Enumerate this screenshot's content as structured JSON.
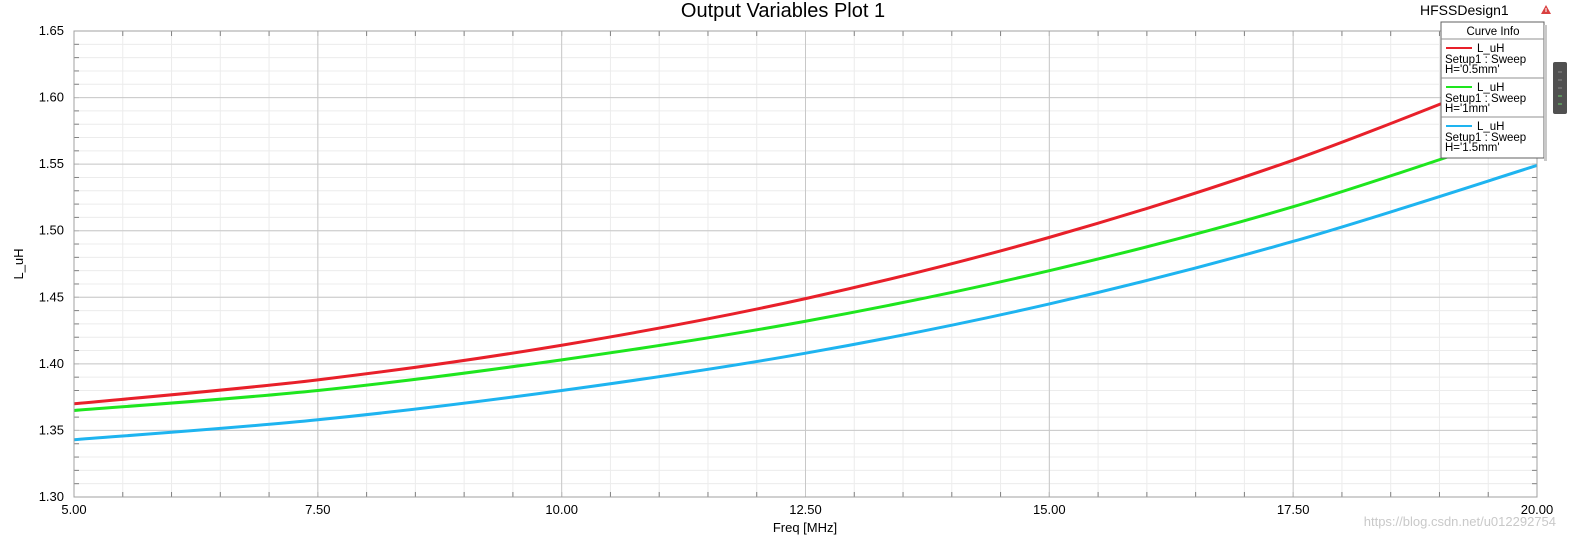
{
  "header": {
    "design_name": "HFSSDesign1"
  },
  "watermark": "https://blog.csdn.net/u012292754",
  "legend": {
    "title": "Curve Info",
    "entries": [
      {
        "name": "L_uH",
        "line2": "Setup1 : Sweep",
        "line3": "H='0.5mm'",
        "color": "#e8202a"
      },
      {
        "name": "L_uH",
        "line2": "Setup1 : Sweep",
        "line3": "H='1mm'",
        "color": "#1ee61e"
      },
      {
        "name": "L_uH",
        "line2": "Setup1 : Sweep",
        "line3": "H='1.5mm'",
        "color": "#1eb4f0"
      }
    ]
  },
  "chart_data": {
    "type": "line",
    "title": "Output Variables Plot 1",
    "xlabel": "Freq [MHz]",
    "ylabel": "L_uH",
    "xlim": [
      5.0,
      20.0
    ],
    "ylim": [
      1.3,
      1.65
    ],
    "xticks": [
      "5.00",
      "7.50",
      "10.00",
      "12.50",
      "15.00",
      "17.50",
      "20.00"
    ],
    "yticks": [
      "1.30",
      "1.35",
      "1.40",
      "1.45",
      "1.50",
      "1.55",
      "1.60",
      "1.65"
    ],
    "grid": true,
    "legend_position": "top-right",
    "x": [
      5,
      7.5,
      10,
      12.5,
      15,
      17.5,
      20
    ],
    "series": [
      {
        "name": "L_uH Setup1 : Sweep H='0.5mm'",
        "color": "#e8202a",
        "values": [
          1.37,
          1.388,
          1.414,
          1.449,
          1.495,
          1.553,
          1.624
        ]
      },
      {
        "name": "L_uH Setup1 : Sweep H='1mm'",
        "color": "#1ee61e",
        "values": [
          1.365,
          1.38,
          1.403,
          1.432,
          1.47,
          1.518,
          1.578
        ]
      },
      {
        "name": "L_uH Setup1 : Sweep H='1.5mm'",
        "color": "#1eb4f0",
        "values": [
          1.343,
          1.358,
          1.38,
          1.408,
          1.445,
          1.492,
          1.549
        ]
      }
    ]
  }
}
